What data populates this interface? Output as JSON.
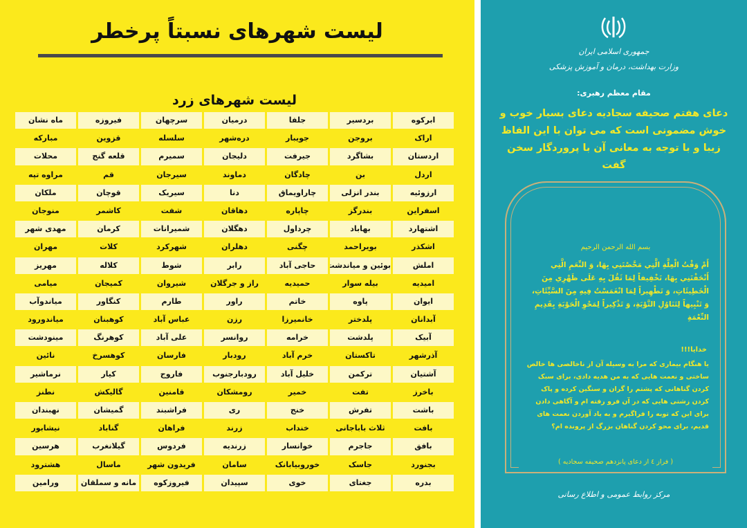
{
  "left": {
    "title": "لیست شهرهای نسبتاً پرخطر",
    "table_title": "لیست شهرهای زرد",
    "rows": [
      [
        "ابرکوه",
        "بردسیر",
        "جلفا",
        "درمیان",
        "سرچهان",
        "فیروزه",
        "ماه نشان"
      ],
      [
        "اراک",
        "بروجن",
        "جویبار",
        "دره‌شهر",
        "سلسله",
        "قزوین",
        "مبارکه"
      ],
      [
        "اردستان",
        "بشاگرد",
        "جیرفت",
        "دلیجان",
        "سمیرم",
        "قلعه گنج",
        "محلات"
      ],
      [
        "اردل",
        "بن",
        "چادگان",
        "دماوند",
        "سیرجان",
        "قم",
        "مراوه تپه"
      ],
      [
        "ارزوئیه",
        "بندر انزلی",
        "چاراویماق",
        "دنا",
        "سیریک",
        "قوچان",
        "ملکان"
      ],
      [
        "اسفراین",
        "بندرگز",
        "چاپاره",
        "دهاقان",
        "شفت",
        "کاشمر",
        "منوجان"
      ],
      [
        "اشتهارد",
        "بهاباد",
        "چرداول",
        "دهگلان",
        "شمیرانات",
        "کرمان",
        "مهدی شهر"
      ],
      [
        "اشکذر",
        "بویراحمد",
        "چگنی",
        "دهلران",
        "شهرکرد",
        "کلات",
        "مهران"
      ],
      [
        "املش",
        "بوئین و میاندشت",
        "حاجی آباد",
        "رابر",
        "شوط",
        "کلاله",
        "مهریز"
      ],
      [
        "امیدیه",
        "بیله سوار",
        "حمیدیه",
        "راز و جرگلان",
        "شیروان",
        "کمیجان",
        "میامی"
      ],
      [
        "ایوان",
        "پاوه",
        "خاتم",
        "راور",
        "طارم",
        "کنگاور",
        "میاندوآب"
      ],
      [
        "آبدانان",
        "پلدختر",
        "خانمیرزا",
        "رزن",
        "عباس آباد",
        "کوهبنان",
        "میاندورود"
      ],
      [
        "آبیک",
        "پلدشت",
        "خرامه",
        "روانسر",
        "علی آباد",
        "کوهرنگ",
        "مینودشت"
      ],
      [
        "آذرشهر",
        "تاکستان",
        "خرم آباد",
        "رودبار",
        "فارسان",
        "کوهسرخ",
        "نائین"
      ],
      [
        "آشتیان",
        "ترکمن",
        "خلیل آباد",
        "رودبارجنوب",
        "فاروج",
        "کیار",
        "نرماشیر"
      ],
      [
        "باخرز",
        "تفت",
        "خمیر",
        "رومشکان",
        "قامنین",
        "گالیکش",
        "نطنز"
      ],
      [
        "باشت",
        "تفرش",
        "خنج",
        "ری",
        "فراشبند",
        "گمیشان",
        "نهبندان"
      ],
      [
        "بافت",
        "ثلاث باباجانی",
        "خنداب",
        "زرند",
        "فراهان",
        "گناباد",
        "نیشابور"
      ],
      [
        "بافق",
        "جاجرم",
        "خوانسار",
        "زرندیه",
        "فردوس",
        "گیلانغرب",
        "هرسین"
      ],
      [
        "بجنورد",
        "جاسک",
        "خوروبیابانک",
        "سامان",
        "فریدون شهر",
        "ماسال",
        "هشترود"
      ],
      [
        "بدره",
        "جغتای",
        "خوی",
        "سپیدان",
        "فیروزکوه",
        "مانه و سملقان",
        "ورامین"
      ]
    ]
  },
  "right": {
    "emblem": "iran-emblem-icon",
    "country": "جمهوری اسلامی ایران",
    "ministry": "وزارت بهداشت، درمان و آموزش پزشکی",
    "quote_label": "مقام معظم رهبری:",
    "quote": "دعای هفتم صحیفه سجادیه دعای بسیار خوب و خوش مضمونی است که می توان با این الفاظ زیبا و با توجه به معانی آن با پروردگار سخن گفت",
    "bismillah": "بسم الله الرحمن الرحیم",
    "prayer": "أَمْ وَقْتُ الْعِلَّةِ الَّتِي مَحَّصْتَنِي بِهَا، وَ النِّعَمِ الَّتِي أَتْحَفْتَنِي بِهَا، تَخْفِيفاً لِمَا ثَقُلَ بِهِ عَلَى ظَهْرِي مِنَ الْخَطِيئَاتِ، وَ تَطْهِيراً لِمَا انْغَمَسْتُ فِيهِ مِنَ السَّيِّئَاتِ، وَ تَنْبِيهاً لِتَنَاوُلِ التَّوْبَةِ، وَ تَذْكِيراً لِمَحْوِ الْحَوْبَةِ بِقَدِيمِ النِّعْمَةِ",
    "khodaya": "خدایا!!!",
    "translation": "یا هنگام بیماری که مرا به وسیله آن از ناخالصی ها خالص ساختی و نعمت هایی که به من هدیه دادی، برای سبک کردن گناهانی که پشتم را گران و سنگین کرده و پاک کردن زشتی هایی که در آن فرو رفته ام و آگاهی دادن برای این که توبه را فراگیرم و به یاد آوردن نعمت های قدیم، برای محو کردن گناهان بزرگ از پرونده ام؟",
    "source": "( فراز ٤ از دعای پانزدهم صحیفه سجادیه )",
    "footer": "مرکز روابط عمومی و اطلاع رسانی"
  },
  "colors": {
    "yellow": "#fbe91c",
    "teal": "#1e9fae",
    "quote_yellow": "#f3e829",
    "row_light": "#fdf8c6"
  }
}
